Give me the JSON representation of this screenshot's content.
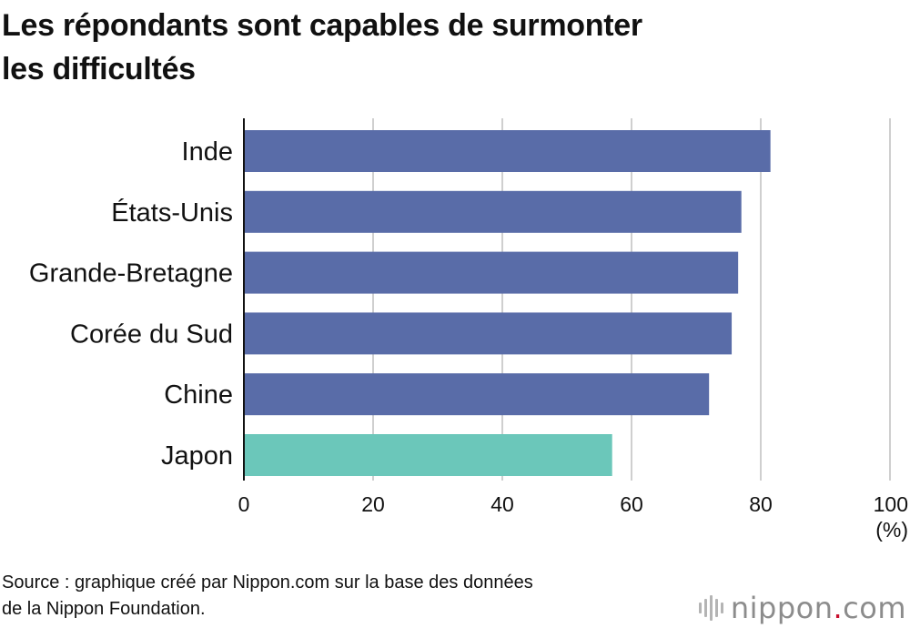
{
  "title_lines": [
    "Les répondants sont capables de surmonter",
    "les difficultés"
  ],
  "source_lines": [
    "Source : graphique créé par Nippon.com sur la base des données",
    "de la Nippon Foundation."
  ],
  "logo": {
    "name": "nippon",
    "dot": ".",
    "suffix": "com"
  },
  "colors": {
    "bar": "#596ca8",
    "highlight": "#6bc7ba",
    "grid": "#cfcfcf",
    "axis": "#111111"
  },
  "chart_data": {
    "type": "bar",
    "orientation": "horizontal",
    "categories": [
      "Inde",
      "États-Unis",
      "Grande-Bretagne",
      "Corée du Sud",
      "Chine",
      "Japon"
    ],
    "values": [
      81.5,
      77,
      76.5,
      75.5,
      72,
      57
    ],
    "highlight_category": "Japon",
    "xlim": [
      0,
      100
    ],
    "xticks": [
      0,
      20,
      40,
      60,
      80,
      100
    ],
    "unit": "(%)",
    "grid": true
  }
}
